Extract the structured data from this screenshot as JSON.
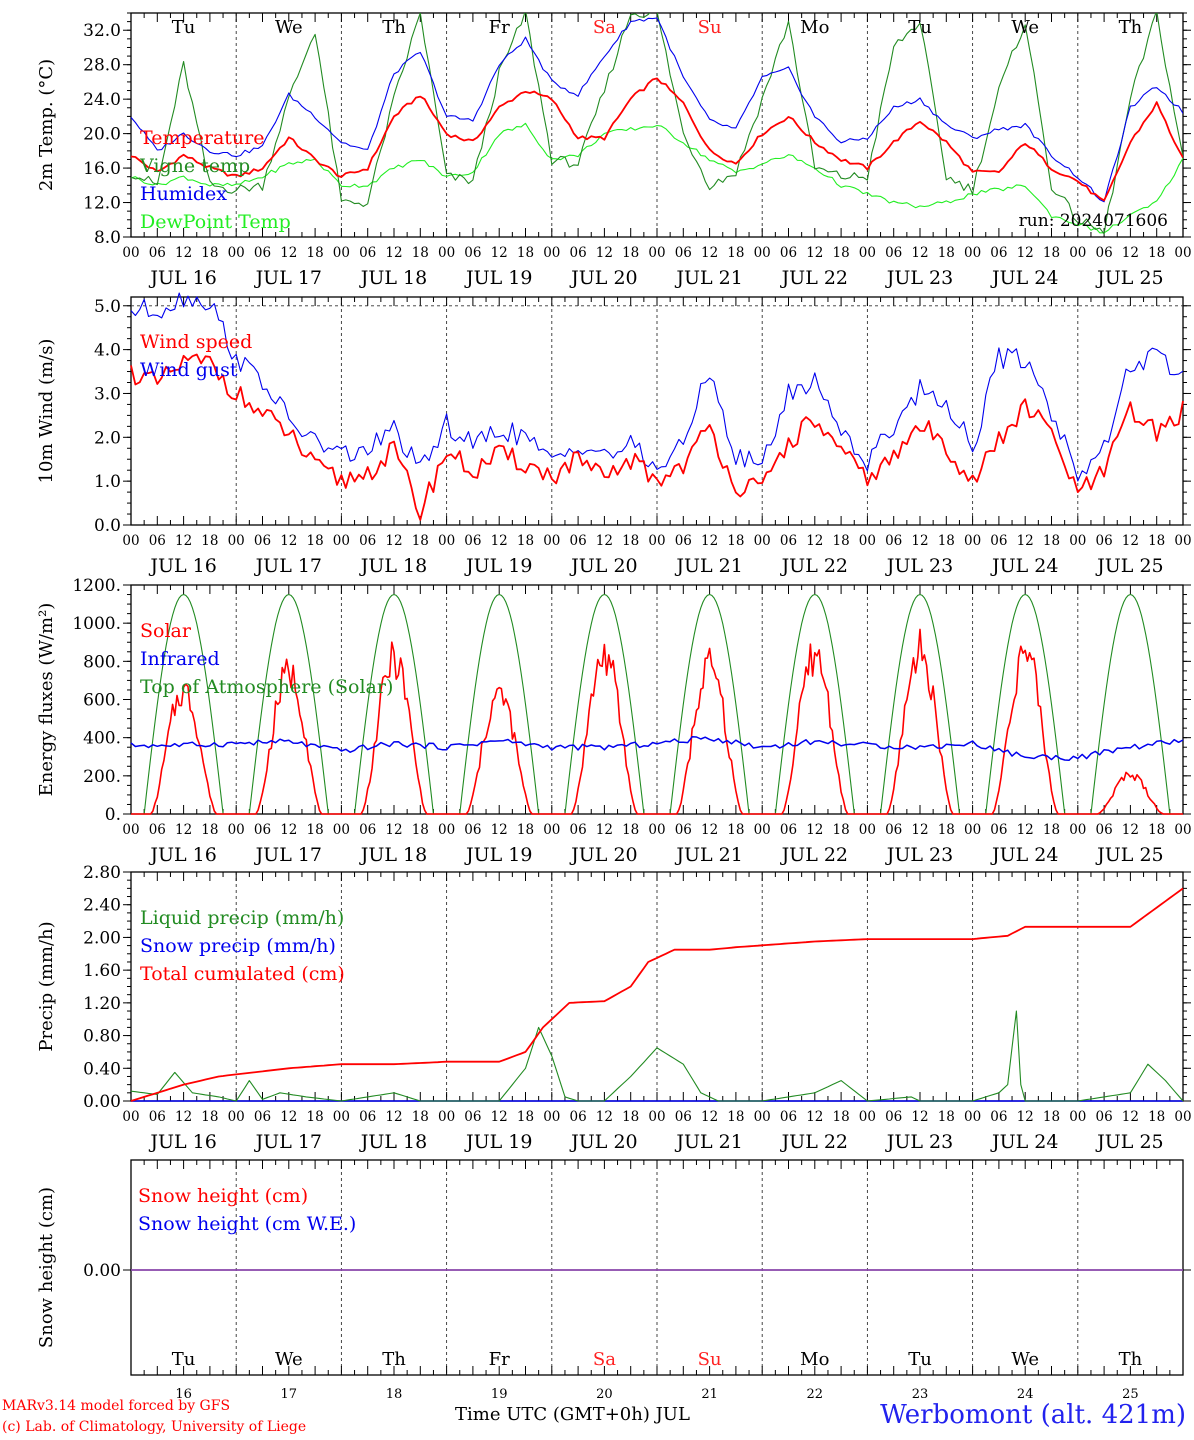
{
  "footer": {
    "model_line": "MARv3.14 model forced by GFS",
    "credit_line": "(c) Lab. of Climatology, University of Liege",
    "time_axis_label": "Time UTC (GMT+0h) JUL",
    "station": "Werbomont (alt. 421m)"
  },
  "days": {
    "weekdays": [
      "Tu",
      "We",
      "Th",
      "Fr",
      "Sa",
      "Su",
      "Mo",
      "Tu",
      "We",
      "Th"
    ],
    "weekend_flags": [
      false,
      false,
      false,
      false,
      true,
      true,
      false,
      false,
      false,
      false
    ],
    "dates": [
      "JUL 16",
      "JUL 17",
      "JUL 18",
      "JUL 19",
      "JUL 20",
      "JUL 21",
      "JUL 22",
      "JUL 23",
      "JUL 24",
      "JUL 25"
    ],
    "day_numbers": [
      "16",
      "17",
      "18",
      "19",
      "20",
      "21",
      "22",
      "23",
      "24",
      "25"
    ],
    "hour_ticks": [
      "00",
      "06",
      "12",
      "18"
    ],
    "final_tick": "00"
  },
  "colors": {
    "red": "#ff0000",
    "blue": "#0000ee",
    "green": "#228b22",
    "light_green": "#22ee22",
    "purple": "#8844aa",
    "weekend": "#ff2222"
  },
  "chart_data": [
    {
      "type": "line",
      "ylabel": "2m Temp. (°C)",
      "ylim": [
        8,
        34
      ],
      "yticks": [
        "8.0",
        "12.0",
        "16.0",
        "20.0",
        "24.0",
        "28.0",
        "32.0"
      ],
      "annotation": "run: 2024071606",
      "x_hours": [
        0,
        6,
        12,
        18,
        24,
        30,
        36,
        42,
        48,
        54,
        60,
        66,
        72,
        78,
        84,
        90,
        96,
        102,
        108,
        114,
        120,
        126,
        132,
        138,
        144,
        150,
        156,
        162,
        168,
        174,
        180,
        186,
        192,
        198,
        204,
        210,
        216,
        222,
        228,
        234,
        240
      ],
      "series": [
        {
          "name": "Temperature",
          "color": "red",
          "values": [
            17.5,
            15.5,
            17.5,
            16,
            15,
            16,
            19.5,
            17,
            15,
            16,
            22,
            24.5,
            20,
            19,
            23,
            25,
            24,
            19.5,
            19.5,
            24,
            26.5,
            23.5,
            18,
            16.5,
            20,
            22,
            19,
            17,
            16,
            19,
            21.5,
            19,
            15.5,
            15.5,
            19,
            16,
            14.5,
            12,
            19,
            23.5,
            17
          ]
        },
        {
          "name": "Vigne temp",
          "color": "green",
          "values": [
            15.5,
            14,
            28,
            14,
            13.5,
            14,
            24,
            32,
            12,
            12,
            24,
            34,
            15,
            14.5,
            27,
            34,
            17,
            16.5,
            25,
            34,
            34,
            20,
            14,
            15.5,
            24,
            33,
            16,
            15,
            15,
            30,
            33,
            15,
            13.5,
            25,
            33,
            14,
            10,
            8.5,
            24,
            34,
            17
          ]
        },
        {
          "name": "Humidex",
          "color": "blue",
          "values": [
            22,
            18,
            20,
            18,
            17.5,
            18.5,
            24.5,
            22,
            19,
            18,
            27,
            29.5,
            22,
            21.5,
            28,
            31,
            26,
            24.5,
            29,
            33,
            33.5,
            26.5,
            21.5,
            20.5,
            26.5,
            27.5,
            22,
            19,
            19.5,
            23,
            24,
            21,
            19.5,
            20.5,
            21,
            17.5,
            15,
            12,
            23,
            25.5,
            22.5
          ]
        },
        {
          "name": "DewPoint Temp",
          "color": "light_green",
          "values": [
            15,
            14,
            15,
            14,
            14,
            15,
            16.5,
            17,
            14,
            14,
            16,
            17,
            15,
            15.5,
            20,
            21,
            17,
            17.5,
            20,
            20.5,
            21,
            19,
            17,
            15.5,
            16.5,
            17.5,
            16,
            14,
            13,
            12,
            11.5,
            12,
            13,
            13.5,
            14,
            10.5,
            9.5,
            8.5,
            10.5,
            12,
            17
          ]
        }
      ]
    },
    {
      "type": "line",
      "ylabel": "10m Wind (m/s)",
      "ylim": [
        0,
        5.2
      ],
      "yticks": [
        "0.0",
        "1.0",
        "2.0",
        "3.0",
        "4.0",
        "5.0"
      ],
      "x_hours": [
        0,
        6,
        12,
        18,
        24,
        30,
        36,
        42,
        48,
        54,
        60,
        66,
        72,
        78,
        84,
        90,
        96,
        102,
        108,
        114,
        120,
        126,
        132,
        138,
        144,
        150,
        156,
        162,
        168,
        174,
        180,
        186,
        192,
        198,
        204,
        210,
        216,
        222,
        228,
        234,
        240
      ],
      "series": [
        {
          "name": "Wind speed",
          "color": "red",
          "values": [
            3.5,
            3.2,
            3.7,
            3.7,
            3,
            2.5,
            2.1,
            1.3,
            1,
            1.2,
            1.7,
            0.3,
            1.7,
            1.2,
            1.6,
            1.4,
            1.1,
            1.5,
            1,
            1.5,
            1,
            1.4,
            2.2,
            0.9,
            0.8,
            1.9,
            2.4,
            1.6,
            1.1,
            1.5,
            2.3,
            1.8,
            1,
            1.9,
            2.7,
            2.1,
            0.7,
            1.2,
            2.6,
            2.1,
            2.6
          ]
        },
        {
          "name": "Wind gust",
          "color": "blue",
          "values": [
            4.9,
            4.9,
            5.2,
            5.1,
            3.8,
            3.3,
            2.4,
            1.9,
            1.6,
            1.7,
            2.2,
            1.2,
            2.3,
            1.8,
            2.2,
            2,
            1.4,
            1.9,
            1.6,
            1.8,
            1.3,
            1.8,
            3.6,
            1.5,
            1.4,
            3,
            3.3,
            2.2,
            1.4,
            2.3,
            3.1,
            2.8,
            1.8,
            3.8,
            3.8,
            2.6,
            1.2,
            1.7,
            3.7,
            3.8,
            3.4
          ]
        }
      ]
    },
    {
      "type": "line",
      "ylabel": "Energy fluxes (W/m²)",
      "ylim": [
        0,
        1200
      ],
      "yticks": [
        "0.",
        "200.",
        "400.",
        "600.",
        "800.",
        "1000.",
        "1200."
      ],
      "series": [
        {
          "name": "Solar",
          "color": "red",
          "daily_peaks": [
            660,
            760,
            830,
            640,
            850,
            790,
            850,
            880,
            860,
            210
          ]
        },
        {
          "name": "Infrared",
          "color": "blue",
          "x_hours": [
            0,
            12,
            24,
            36,
            48,
            60,
            72,
            84,
            96,
            108,
            120,
            132,
            144,
            156,
            168,
            180,
            192,
            204,
            216,
            228,
            240
          ],
          "values": [
            360,
            360,
            370,
            380,
            330,
            370,
            350,
            385,
            350,
            350,
            370,
            400,
            350,
            380,
            360,
            350,
            370,
            300,
            295,
            350,
            385
          ]
        },
        {
          "name": "Top of Atmosphere (Solar)",
          "color": "green",
          "daily_peak": 1150
        }
      ]
    },
    {
      "type": "line",
      "ylabel": "Precip (mm/h)",
      "ylim": [
        0,
        2.8
      ],
      "yticks": [
        "0.00",
        "0.40",
        "0.80",
        "1.20",
        "1.60",
        "2.00",
        "2.40",
        "2.80"
      ],
      "series": [
        {
          "name": "Liquid precip (mm/h)",
          "color": "green",
          "x_hours": [
            0,
            6,
            10,
            14,
            20,
            24,
            27,
            30,
            34,
            40,
            48,
            60,
            66,
            72,
            84,
            90,
            93,
            96,
            99,
            102,
            108,
            114,
            120,
            126,
            130,
            134,
            138,
            144,
            156,
            162,
            168,
            178,
            180,
            186,
            192,
            198,
            200,
            202,
            203,
            204,
            210,
            216,
            228,
            232,
            236,
            240
          ],
          "values": [
            0.12,
            0.08,
            0.35,
            0.1,
            0.05,
            0,
            0.25,
            0.02,
            0.1,
            0.05,
            0,
            0.1,
            0,
            0,
            0,
            0.4,
            0.9,
            0.55,
            0.05,
            0,
            0,
            0.3,
            0.65,
            0.45,
            0.1,
            0,
            0,
            0,
            0.1,
            0.25,
            0,
            0.05,
            0,
            0,
            0,
            0.1,
            0.2,
            1.1,
            0.2,
            0,
            0,
            0,
            0.1,
            0.45,
            0.25,
            0
          ]
        },
        {
          "name": "Snow precip (mm/h)",
          "color": "blue",
          "values": [
            0
          ]
        },
        {
          "name": "Total cumulated (cm)",
          "color": "red",
          "x_hours": [
            0,
            12,
            20,
            36,
            48,
            60,
            72,
            84,
            90,
            94,
            100,
            108,
            114,
            118,
            124,
            132,
            138,
            156,
            168,
            192,
            200,
            204,
            214,
            228,
            240
          ],
          "values": [
            0,
            0.2,
            0.3,
            0.4,
            0.45,
            0.45,
            0.48,
            0.48,
            0.6,
            0.9,
            1.2,
            1.22,
            1.4,
            1.7,
            1.85,
            1.85,
            1.88,
            1.95,
            1.98,
            1.98,
            2.02,
            2.13,
            2.13,
            2.13,
            2.6
          ]
        }
      ]
    },
    {
      "type": "line",
      "ylabel": "Snow height (cm)",
      "yticks": [
        "0.00"
      ],
      "series": [
        {
          "name": "Snow height (cm)",
          "color": "red",
          "values": [
            0
          ]
        },
        {
          "name": "Snow height (cm W.E.)",
          "color": "blue",
          "values": [
            0
          ]
        }
      ]
    }
  ]
}
